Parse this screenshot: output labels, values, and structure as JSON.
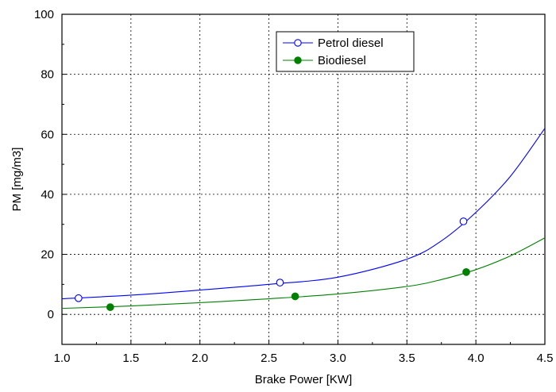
{
  "chart_data": {
    "type": "line",
    "xlabel": "Brake Power [KW]",
    "ylabel": "PM [mg/m3]",
    "xlim": [
      1.0,
      4.5
    ],
    "ylim": [
      -10,
      100
    ],
    "x_ticks": [
      "1.0",
      "1.5",
      "2.0",
      "2.5",
      "3.0",
      "3.5",
      "4.0",
      "4.5"
    ],
    "y_ticks": [
      "0",
      "20",
      "40",
      "60",
      "80",
      "100"
    ],
    "grid": true,
    "legend_position": "top-center",
    "series": [
      {
        "name": "Petrol diesel",
        "color": "#0000ff",
        "marker": "open-circle",
        "points": [
          {
            "x": 1.12,
            "y": 5.4
          },
          {
            "x": 2.58,
            "y": 10.6
          },
          {
            "x": 3.91,
            "y": 31.0
          }
        ],
        "curve": [
          {
            "x": 1.0,
            "y": 5.2
          },
          {
            "x": 1.5,
            "y": 6.4
          },
          {
            "x": 2.0,
            "y": 8.1
          },
          {
            "x": 2.5,
            "y": 10.0
          },
          {
            "x": 3.0,
            "y": 12.4
          },
          {
            "x": 3.5,
            "y": 18.4
          },
          {
            "x": 3.75,
            "y": 24.5
          },
          {
            "x": 4.0,
            "y": 34.0
          },
          {
            "x": 4.25,
            "y": 46.0
          },
          {
            "x": 4.5,
            "y": 62.0
          }
        ]
      },
      {
        "name": "Biodiesel",
        "color": "#008000",
        "marker": "filled-circle",
        "points": [
          {
            "x": 1.35,
            "y": 2.4
          },
          {
            "x": 2.69,
            "y": 6.0
          },
          {
            "x": 3.93,
            "y": 14.1
          }
        ],
        "curve": [
          {
            "x": 1.0,
            "y": 2.0
          },
          {
            "x": 1.5,
            "y": 2.8
          },
          {
            "x": 2.0,
            "y": 3.9
          },
          {
            "x": 2.5,
            "y": 5.2
          },
          {
            "x": 3.0,
            "y": 6.8
          },
          {
            "x": 3.5,
            "y": 9.3
          },
          {
            "x": 3.75,
            "y": 11.6
          },
          {
            "x": 4.0,
            "y": 14.9
          },
          {
            "x": 4.25,
            "y": 19.5
          },
          {
            "x": 4.5,
            "y": 25.5
          }
        ]
      }
    ]
  }
}
